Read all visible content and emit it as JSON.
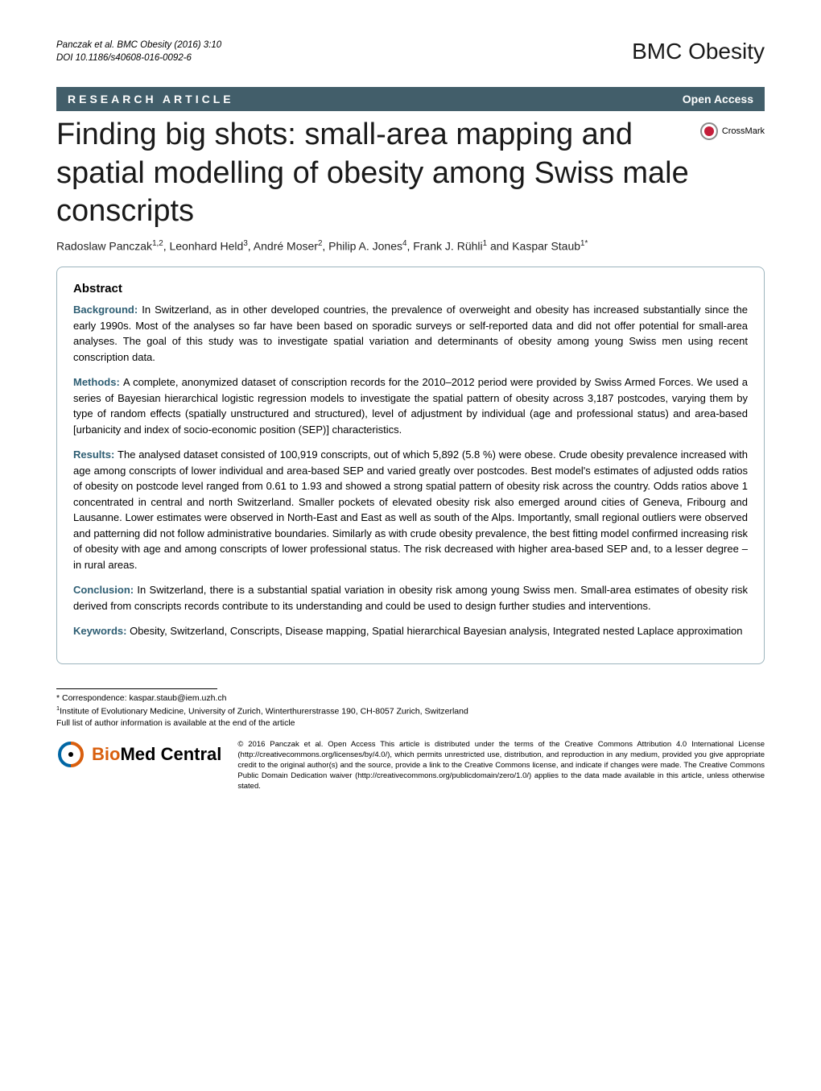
{
  "citation": {
    "line1": "Panczak et al. BMC Obesity  (2016) 3:10",
    "line2": "DOI 10.1186/s40608-016-0092-6"
  },
  "journal_logo": "BMC Obesity",
  "article_type_bar": {
    "type_label": "RESEARCH ARTICLE",
    "open_access": "Open Access",
    "bg_color": "#425e6a",
    "text_color": "#ffffff"
  },
  "title": "Finding big shots: small-area mapping and spatial modelling of obesity among Swiss male conscripts",
  "crossmark_label": "CrossMark",
  "authors_html": "Radoslaw Panczak<sup>1,2</sup>, Leonhard Held<sup>3</sup>, André Moser<sup>2</sup>, Philip A. Jones<sup>4</sup>, Frank J. Rühli<sup>1</sup> and Kaspar Staub<sup>1*</sup>",
  "abstract": {
    "heading": "Abstract",
    "sections": [
      {
        "label": "Background:",
        "text": "In Switzerland, as in other developed countries, the prevalence of overweight and obesity has increased substantially since the early 1990s. Most of the analyses so far have been based on sporadic surveys or self-reported data and did not offer potential for small-area analyses. The goal of this study was to investigate spatial variation and determinants of obesity among young Swiss men using recent conscription data."
      },
      {
        "label": "Methods:",
        "text": "A complete, anonymized dataset of conscription records for the 2010–2012 period were provided by Swiss Armed Forces. We used a series of Bayesian hierarchical logistic regression models to investigate the spatial pattern of obesity across 3,187 postcodes, varying them by type of random effects (spatially unstructured and structured), level of adjustment by individual (age and professional status) and area-based [urbanicity and index of socio-economic position (SEP)] characteristics."
      },
      {
        "label": "Results:",
        "text": "The analysed dataset consisted of 100,919 conscripts, out of which 5,892 (5.8 %) were obese. Crude obesity prevalence increased with age among conscripts of lower individual and area-based SEP and varied greatly over postcodes. Best model's estimates of adjusted odds ratios of obesity on postcode level ranged from 0.61 to 1.93 and showed a strong spatial pattern of obesity risk across the country. Odds ratios above 1 concentrated in central and north Switzerland. Smaller pockets of elevated obesity risk also emerged around cities of Geneva, Fribourg and Lausanne. Lower estimates were observed in North-East and East as well as south of the Alps. Importantly, small regional outliers were observed and patterning did not follow administrative boundaries. Similarly as with crude obesity prevalence, the best fitting model confirmed increasing risk of obesity with age and among conscripts of lower professional status. The risk decreased with higher area-based SEP and, to a lesser degree – in rural areas."
      },
      {
        "label": "Conclusion:",
        "text": "In Switzerland, there is a substantial spatial variation in obesity risk among young Swiss men. Small-area estimates of obesity risk derived from conscripts records contribute to its understanding and could be used to design further studies and interventions."
      },
      {
        "label": "Keywords:",
        "text": "Obesity, Switzerland, Conscripts, Disease mapping, Spatial hierarchical Bayesian analysis, Integrated nested Laplace approximation"
      }
    ]
  },
  "correspondence": {
    "line1": "* Correspondence: kaspar.staub@iem.uzh.ch",
    "line2_html": "<sup>1</sup>Institute of Evolutionary Medicine, University of Zurich, Winterthurerstrasse 190, CH-8057 Zurich, Switzerland",
    "line3": "Full list of author information is available at the end of the article"
  },
  "publisher_logo": {
    "bio": "Bio",
    "med": "Med",
    "central": " Central"
  },
  "license": "© 2016 Panczak et al. Open Access This article is distributed under the terms of the Creative Commons Attribution 4.0 International License (http://creativecommons.org/licenses/by/4.0/), which permits unrestricted use, distribution, and reproduction in any medium, provided you give appropriate credit to the original author(s) and the source, provide a link to the Creative Commons license, and indicate if changes were made. The Creative Commons Public Domain Dedication waiver (http://creativecommons.org/publicdomain/zero/1.0/) applies to the data made available in this article, unless otherwise stated.",
  "colors": {
    "section_label": "#2e5e73",
    "abstract_border": "#9cb4bd",
    "bmc_orange": "#d95f0e"
  }
}
